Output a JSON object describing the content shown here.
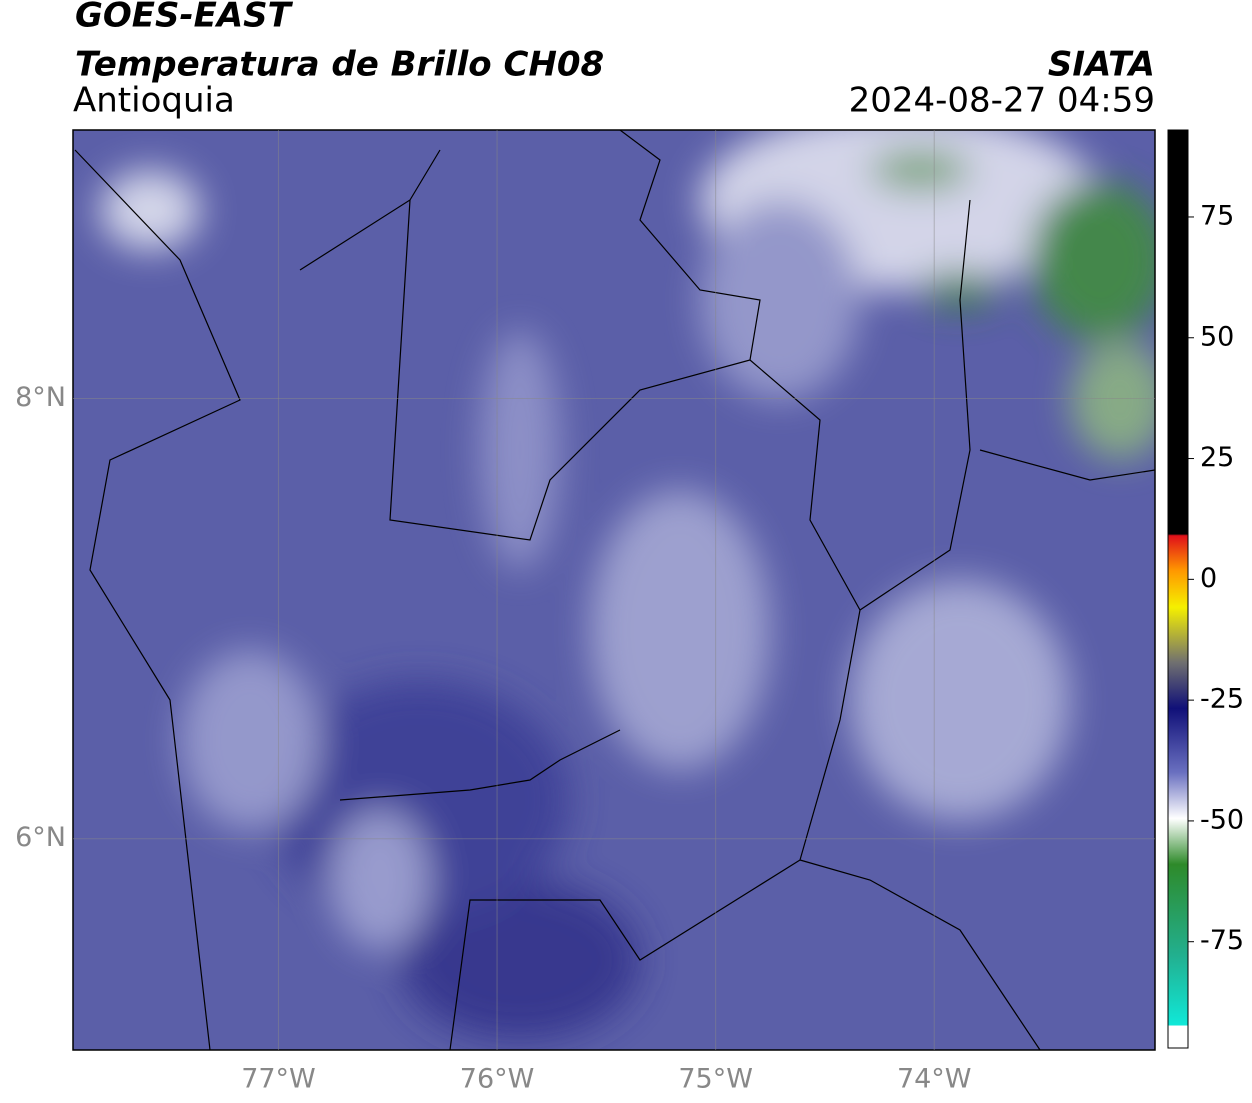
{
  "header": {
    "title": "GOES-EAST",
    "subtitle": "Temperatura de Brillo CH08",
    "region": "Antioquia",
    "source": "SIATA",
    "timestamp": "2024-08-27 04:59"
  },
  "map": {
    "xlim": [
      -77.94,
      -72.99
    ],
    "ylim": [
      5.04,
      9.22
    ],
    "xticks": [
      {
        "value": -77,
        "label": "77°W"
      },
      {
        "value": -76,
        "label": "76°W"
      },
      {
        "value": -75,
        "label": "75°W"
      },
      {
        "value": -74,
        "label": "74°W"
      }
    ],
    "yticks": [
      {
        "value": 8,
        "label": "8°N"
      },
      {
        "value": 6,
        "label": "6°N"
      }
    ],
    "grid": true
  },
  "colorbar": {
    "lim": [
      -97,
      93
    ],
    "ticks": [
      75,
      50,
      25,
      0,
      -25,
      -50,
      -75
    ]
  }
}
